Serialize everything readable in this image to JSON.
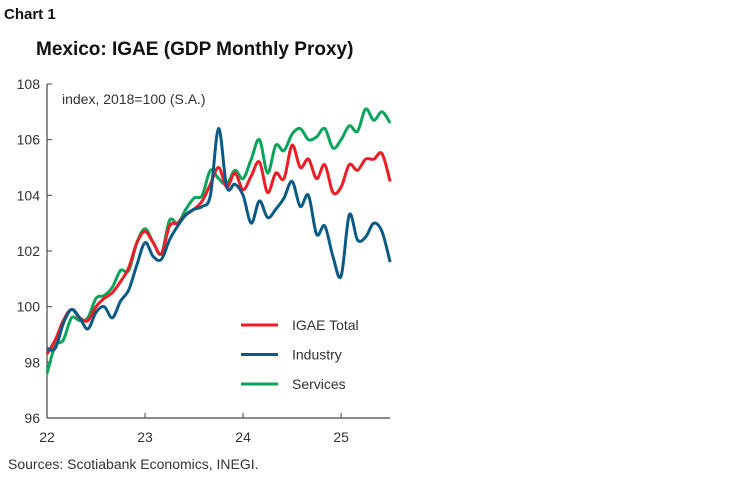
{
  "chart_label": "Chart 1",
  "source": "Sources: Scotiabank Economics, INEGI.",
  "chart_data": {
    "type": "line",
    "title": "Mexico: IGAE (GDP Monthly Proxy)",
    "ylabel": "index, 2018=100 (S.A.)",
    "xlabel": "",
    "ylim": [
      96,
      108
    ],
    "yticks": [
      96,
      98,
      100,
      102,
      104,
      106,
      108
    ],
    "xticks": [
      "22",
      "23",
      "24",
      "25"
    ],
    "xlim": [
      "2022-01",
      "2025-07"
    ],
    "x_start": "2022-01",
    "frequency": "monthly",
    "grid": false,
    "legend": "bottom-right",
    "series": [
      {
        "name": "IGAE Total",
        "color": "#ee1c25",
        "values": [
          98.3,
          98.8,
          99.5,
          99.9,
          99.6,
          99.5,
          100.0,
          100.3,
          100.5,
          100.9,
          101.4,
          102.3,
          102.7,
          102.3,
          101.9,
          102.9,
          103.0,
          103.3,
          103.5,
          103.8,
          104.4,
          105.0,
          104.3,
          104.8,
          104.2,
          104.7,
          105.2,
          104.1,
          104.8,
          104.6,
          105.8,
          105.0,
          105.3,
          104.6,
          105.1,
          104.1,
          104.3,
          105.1,
          104.9,
          105.3,
          105.3,
          105.5,
          104.5
        ]
      },
      {
        "name": "Industry",
        "color": "#0b5a85",
        "values": [
          98.5,
          98.5,
          99.4,
          99.9,
          99.6,
          99.2,
          99.8,
          100.0,
          99.6,
          100.2,
          100.6,
          101.5,
          102.3,
          101.8,
          101.7,
          102.4,
          102.9,
          103.3,
          103.5,
          103.6,
          104.0,
          106.4,
          104.3,
          104.4,
          104.0,
          103.0,
          103.8,
          103.2,
          103.5,
          103.9,
          104.5,
          103.6,
          104.0,
          102.6,
          102.9,
          101.8,
          101.1,
          103.3,
          102.4,
          102.5,
          103.0,
          102.7,
          101.6
        ]
      },
      {
        "name": "Services",
        "color": "#0aa45a",
        "values": [
          97.6,
          98.6,
          98.8,
          99.6,
          99.5,
          99.6,
          100.3,
          100.4,
          100.7,
          101.3,
          101.3,
          102.3,
          102.8,
          102.3,
          101.9,
          103.1,
          103.0,
          103.5,
          103.9,
          104.0,
          104.9,
          104.6,
          104.4,
          104.9,
          104.6,
          105.3,
          106.0,
          104.8,
          105.8,
          105.6,
          106.2,
          106.4,
          106.0,
          106.1,
          106.4,
          105.7,
          106.0,
          106.5,
          106.3,
          107.1,
          106.7,
          107.0,
          106.6
        ]
      }
    ]
  }
}
